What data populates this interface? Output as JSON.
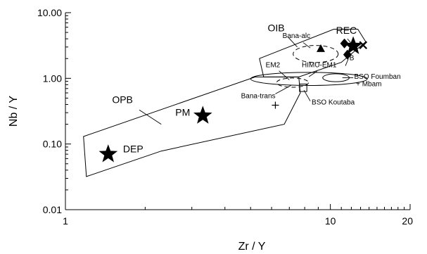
{
  "chart_data": {
    "type": "scatter",
    "title": "",
    "xlabel": "Zr / Y",
    "ylabel": "Nb / Y",
    "x_scale": "log",
    "y_scale": "log",
    "xlim": [
      1,
      20
    ],
    "ylim": [
      0.01,
      10
    ],
    "x_ticks": [
      {
        "value": 1,
        "label": "1"
      },
      {
        "value": 10,
        "label": "10"
      },
      {
        "value": 20,
        "label": "20"
      }
    ],
    "y_ticks": [
      {
        "value": 10,
        "label": "10.00"
      },
      {
        "value": 1,
        "label": "1.00"
      },
      {
        "value": 0.1,
        "label": "0.10"
      },
      {
        "value": 0.01,
        "label": "0.01"
      }
    ],
    "grid": false,
    "fields": [
      {
        "name": "OPB",
        "style": "solid",
        "polygon": [
          [
            1.2,
            0.032
          ],
          [
            1.17,
            0.13
          ],
          [
            5.2,
            1.05
          ],
          [
            7.6,
            1.05
          ],
          [
            7.7,
            0.6
          ],
          [
            6.7,
            0.2
          ],
          [
            2.3,
            0.078
          ]
        ]
      },
      {
        "name": "OIB",
        "style": "solid",
        "polygon": [
          [
            5.6,
            1.05
          ],
          [
            5.4,
            2.0
          ],
          [
            10.3,
            5.6
          ],
          [
            12.7,
            5.6
          ],
          [
            13.6,
            3.6
          ],
          [
            11.0,
            1.75
          ],
          [
            7.6,
            1.05
          ]
        ]
      }
    ],
    "ellipses": [
      {
        "name": "Bana-alc",
        "style": "dashed",
        "center": [
          8.8,
          2.35
        ],
        "rx_decades": 0.085,
        "ry_decades": 0.13
      },
      {
        "name": "Bana-trans",
        "style": "dashed",
        "center": [
          7.2,
          0.86
        ],
        "rx_decades": 0.06,
        "ry_decades": 0.07
      },
      {
        "name": "HIMU-EM1",
        "style": "solid",
        "center": [
          8.3,
          0.98
        ],
        "rx_decades": 0.22,
        "ry_decades": 0.1
      },
      {
        "name": "BSO Foumban + Mbam",
        "style": "solid",
        "center": [
          10.5,
          1.02
        ],
        "rx_decades": 0.05,
        "ry_decades": 0.06
      }
    ],
    "rectangles": [
      {
        "name": "BSO Koutaba",
        "style": "solid",
        "x": [
          7.65,
          8.15
        ],
        "y": [
          0.63,
          0.82
        ]
      }
    ],
    "points": [
      {
        "name": "DEP",
        "marker": "star",
        "x": 1.45,
        "y": 0.07
      },
      {
        "name": "PM",
        "marker": "star",
        "x": 3.3,
        "y": 0.27
      },
      {
        "name": "REC",
        "marker": "star",
        "x": 12.2,
        "y": 3.1
      },
      {
        "name": "",
        "marker": "triangle",
        "x": 9.2,
        "y": 2.85
      },
      {
        "name": "",
        "marker": "diamond",
        "x": 11.6,
        "y": 2.3
      },
      {
        "name": "",
        "marker": "diamond",
        "x": 11.3,
        "y": 3.4
      },
      {
        "name": "",
        "marker": "cross-x",
        "x": 13.3,
        "y": 3.2
      },
      {
        "name": "",
        "marker": "plus",
        "x": 6.2,
        "y": 0.39
      }
    ],
    "labels": [
      {
        "text": "OPB",
        "size": "large",
        "at": [
          1.5,
          0.42
        ]
      },
      {
        "text": "OIB",
        "size": "large",
        "at": [
          5.8,
          5.2
        ]
      },
      {
        "text": "REC",
        "size": "large",
        "at": [
          10.5,
          4.8
        ]
      },
      {
        "text": "PM",
        "size": "large",
        "at": [
          2.6,
          0.27
        ]
      },
      {
        "text": "DEP",
        "size": "large",
        "at": [
          1.65,
          0.075
        ]
      },
      {
        "text": "Bana-alc",
        "size": "small",
        "at": [
          6.6,
          4.1
        ]
      },
      {
        "text": "EM2",
        "size": "small",
        "at": [
          5.7,
          1.48
        ]
      },
      {
        "text": "HIMU-EM1",
        "size": "small",
        "at": [
          7.8,
          1.48
        ]
      },
      {
        "text": "B",
        "size": "small",
        "at": [
          11.8,
          1.9
        ]
      },
      {
        "text": "BSO Foumban",
        "size": "small",
        "at": [
          12.3,
          0.98
        ]
      },
      {
        "text": "+ Mbam",
        "size": "small",
        "at": [
          12.5,
          0.76
        ]
      },
      {
        "text": "Bana-trans",
        "size": "small",
        "at": [
          4.6,
          0.5
        ]
      },
      {
        "text": "BSO Koutaba",
        "size": "small",
        "at": [
          8.5,
          0.4
        ]
      }
    ]
  }
}
